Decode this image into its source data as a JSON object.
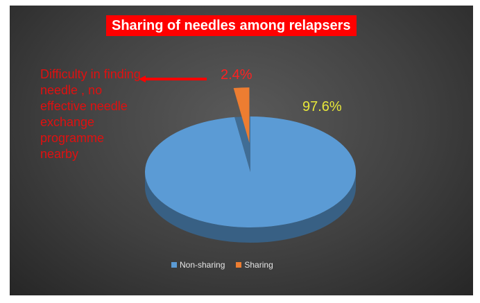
{
  "chart_data": {
    "type": "pie",
    "title": "Sharing of needles among relapsers",
    "categories": [
      "Non-sharing",
      "Sharing"
    ],
    "values": [
      97.6,
      2.4
    ],
    "data_labels": [
      "97.6%",
      "2.4%"
    ],
    "colors": [
      "#5b9bd5",
      "#ed7d31"
    ],
    "label_colors": [
      "#e8e83a",
      "#ff2020"
    ],
    "legend": {
      "placement": "bottom",
      "entries": [
        "Non-sharing",
        "Sharing"
      ]
    },
    "annotation": "Difficulty in finding needle , no effective needle exchange programme nearby"
  }
}
